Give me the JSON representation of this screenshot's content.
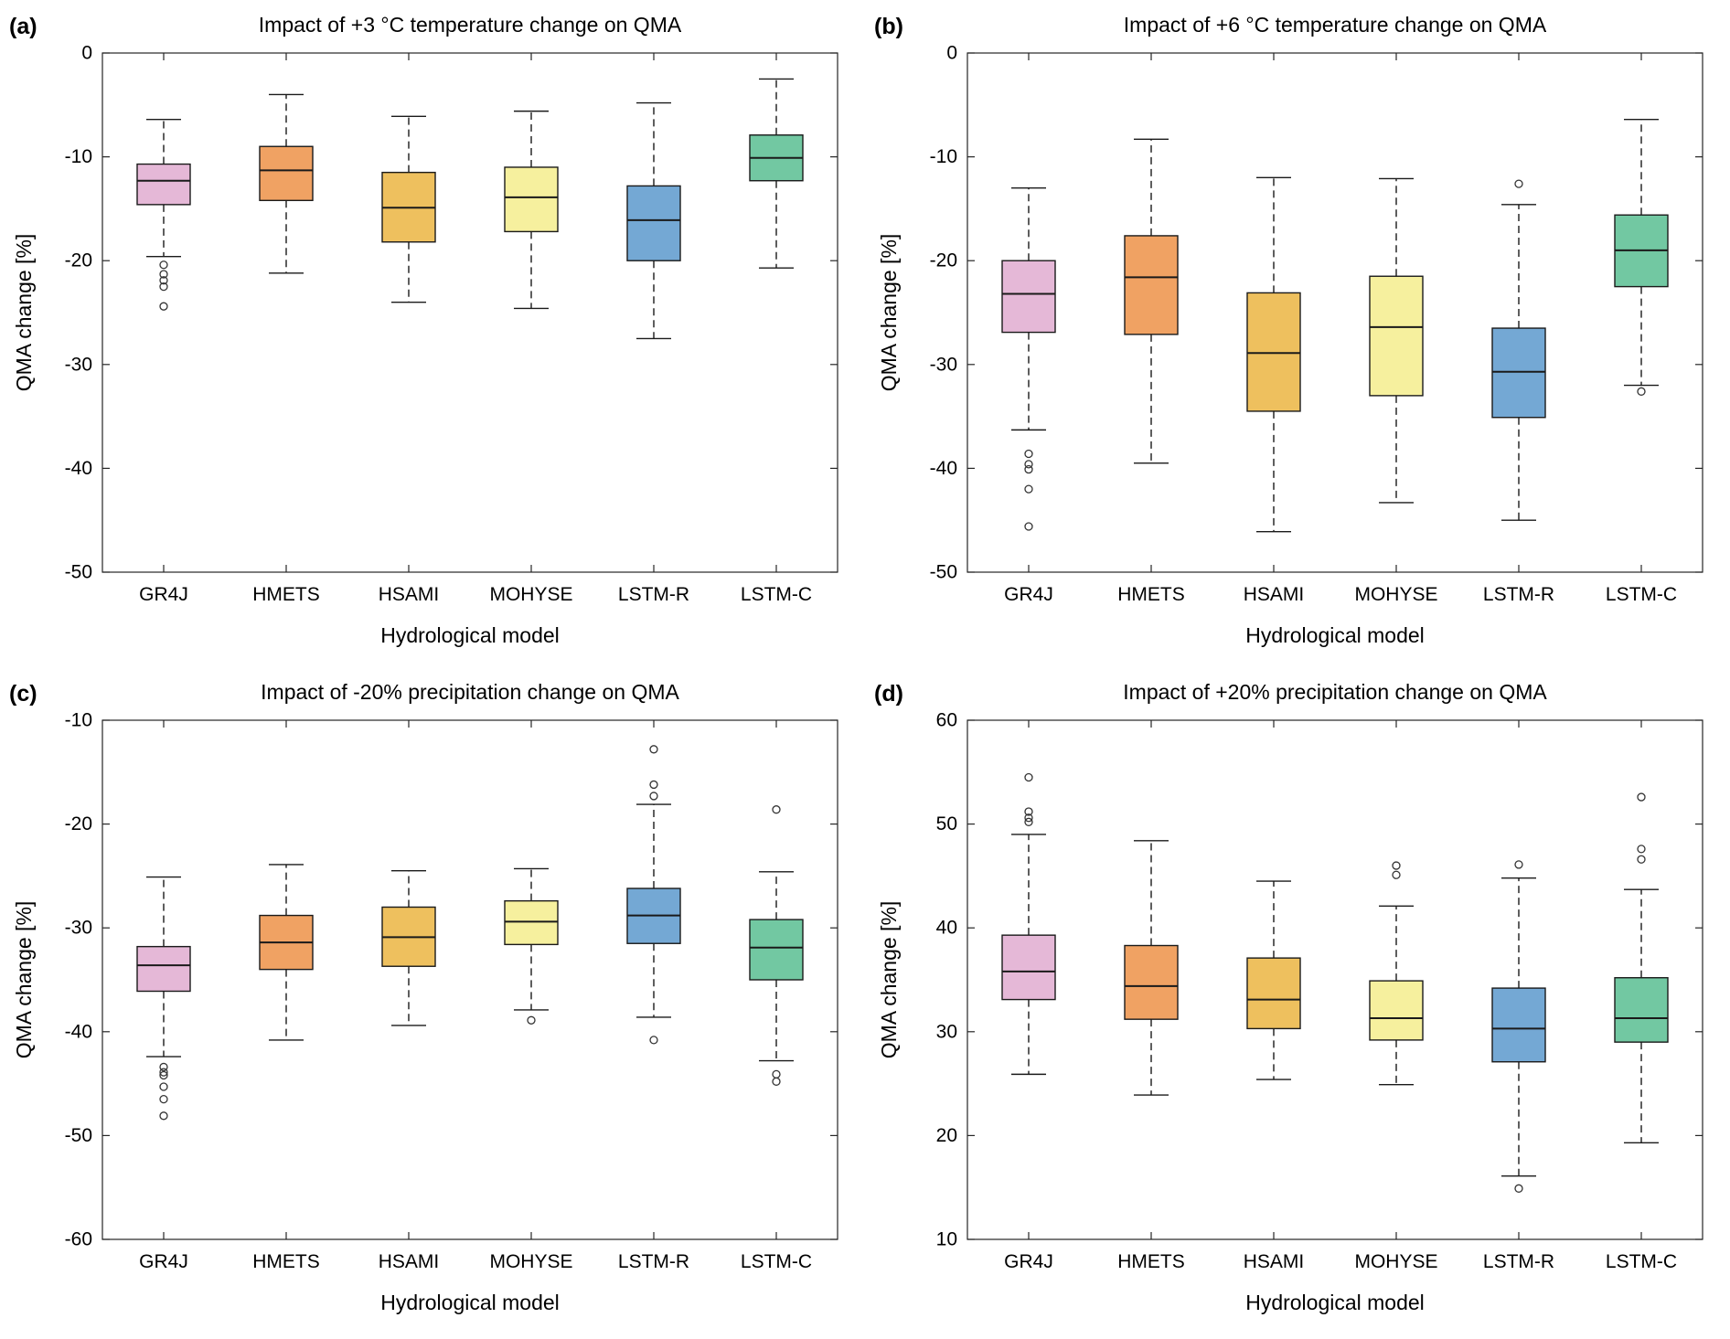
{
  "figure": {
    "background": "#ffffff",
    "categories": [
      "GR4J",
      "HMETS",
      "HSAMI",
      "MOHYSE",
      "LSTM-R",
      "LSTM-C"
    ],
    "colors": {
      "GR4J": "#E5B8D7",
      "HMETS": "#F0A263",
      "HSAMI": "#EEC05E",
      "MOHYSE": "#F6F09E",
      "LSTM-R": "#74A8D4",
      "LSTM-C": "#72C8A2"
    }
  },
  "chart_data": [
    {
      "type": "boxplot",
      "panel_label": "(a)",
      "title": "Impact of +3 °C temperature change on QMA",
      "xlabel": "Hydrological model",
      "ylabel": "QMA change [%]",
      "ylim": [
        -50,
        0
      ],
      "yticks": [
        0,
        -10,
        -20,
        -30,
        -40,
        -50
      ],
      "categories": [
        "GR4J",
        "HMETS",
        "HSAMI",
        "MOHYSE",
        "LSTM-R",
        "LSTM-C"
      ],
      "series": [
        {
          "name": "GR4J",
          "color": "#E5B8D7",
          "whislo": -19.6,
          "q1": -14.6,
          "med": -12.3,
          "q3": -10.7,
          "whishi": -6.4,
          "fliers": [
            -20.4,
            -21.3,
            -21.9,
            -22.5,
            -24.4
          ]
        },
        {
          "name": "HMETS",
          "color": "#F0A263",
          "whislo": -21.2,
          "q1": -14.2,
          "med": -11.3,
          "q3": -9.0,
          "whishi": -4.0,
          "fliers": []
        },
        {
          "name": "HSAMI",
          "color": "#EEC05E",
          "whislo": -24.0,
          "q1": -18.2,
          "med": -14.9,
          "q3": -11.5,
          "whishi": -6.1,
          "fliers": []
        },
        {
          "name": "MOHYSE",
          "color": "#F6F09E",
          "whislo": -24.6,
          "q1": -17.2,
          "med": -13.9,
          "q3": -11.0,
          "whishi": -5.6,
          "fliers": []
        },
        {
          "name": "LSTM-R",
          "color": "#74A8D4",
          "whislo": -27.5,
          "q1": -20.0,
          "med": -16.1,
          "q3": -12.8,
          "whishi": -4.8,
          "fliers": []
        },
        {
          "name": "LSTM-C",
          "color": "#72C8A2",
          "whislo": -20.7,
          "q1": -12.3,
          "med": -10.1,
          "q3": -7.9,
          "whishi": -2.5,
          "fliers": []
        }
      ]
    },
    {
      "type": "boxplot",
      "panel_label": "(b)",
      "title": "Impact of +6 °C temperature change on QMA",
      "xlabel": "Hydrological model",
      "ylabel": "QMA change [%]",
      "ylim": [
        -50,
        0
      ],
      "yticks": [
        0,
        -10,
        -20,
        -30,
        -40,
        -50
      ],
      "categories": [
        "GR4J",
        "HMETS",
        "HSAMI",
        "MOHYSE",
        "LSTM-R",
        "LSTM-C"
      ],
      "series": [
        {
          "name": "GR4J",
          "color": "#E5B8D7",
          "whislo": -36.3,
          "q1": -26.9,
          "med": -23.2,
          "q3": -20.0,
          "whishi": -13.0,
          "fliers": [
            -38.6,
            -39.6,
            -40.1,
            -42.0,
            -45.6
          ]
        },
        {
          "name": "HMETS",
          "color": "#F0A263",
          "whislo": -39.5,
          "q1": -27.1,
          "med": -21.6,
          "q3": -17.6,
          "whishi": -8.3,
          "fliers": []
        },
        {
          "name": "HSAMI",
          "color": "#EEC05E",
          "whislo": -46.1,
          "q1": -34.5,
          "med": -28.9,
          "q3": -23.1,
          "whishi": -12.0,
          "fliers": []
        },
        {
          "name": "MOHYSE",
          "color": "#F6F09E",
          "whislo": -43.3,
          "q1": -33.0,
          "med": -26.4,
          "q3": -21.5,
          "whishi": -12.1,
          "fliers": []
        },
        {
          "name": "LSTM-R",
          "color": "#74A8D4",
          "whislo": -45.0,
          "q1": -35.1,
          "med": -30.7,
          "q3": -26.5,
          "whishi": -14.6,
          "fliers": [
            -12.6
          ]
        },
        {
          "name": "LSTM-C",
          "color": "#72C8A2",
          "whislo": -32.0,
          "q1": -22.5,
          "med": -19.0,
          "q3": -15.6,
          "whishi": -6.4,
          "fliers": [
            -32.6
          ]
        }
      ]
    },
    {
      "type": "boxplot",
      "panel_label": "(c)",
      "title": "Impact of -20% precipitation change on QMA",
      "xlabel": "Hydrological model",
      "ylabel": "QMA change [%]",
      "ylim": [
        -60,
        -10
      ],
      "yticks": [
        -10,
        -20,
        -30,
        -40,
        -50,
        -60
      ],
      "categories": [
        "GR4J",
        "HMETS",
        "HSAMI",
        "MOHYSE",
        "LSTM-R",
        "LSTM-C"
      ],
      "series": [
        {
          "name": "GR4J",
          "color": "#E5B8D7",
          "whislo": -42.4,
          "q1": -36.1,
          "med": -33.6,
          "q3": -31.8,
          "whishi": -25.1,
          "fliers": [
            -43.4,
            -43.9,
            -44.2,
            -45.3,
            -46.5,
            -48.1
          ]
        },
        {
          "name": "HMETS",
          "color": "#F0A263",
          "whislo": -40.8,
          "q1": -34.0,
          "med": -31.4,
          "q3": -28.8,
          "whishi": -23.9,
          "fliers": []
        },
        {
          "name": "HSAMI",
          "color": "#EEC05E",
          "whislo": -39.4,
          "q1": -33.7,
          "med": -30.9,
          "q3": -28.0,
          "whishi": -24.5,
          "fliers": []
        },
        {
          "name": "MOHYSE",
          "color": "#F6F09E",
          "whislo": -37.9,
          "q1": -31.6,
          "med": -29.4,
          "q3": -27.4,
          "whishi": -24.3,
          "fliers": [
            -38.9
          ]
        },
        {
          "name": "LSTM-R",
          "color": "#74A8D4",
          "whislo": -38.6,
          "q1": -31.5,
          "med": -28.8,
          "q3": -26.2,
          "whishi": -18.1,
          "fliers": [
            -12.8,
            -16.2,
            -17.3,
            -40.8
          ]
        },
        {
          "name": "LSTM-C",
          "color": "#72C8A2",
          "whislo": -42.8,
          "q1": -35.0,
          "med": -31.9,
          "q3": -29.2,
          "whishi": -24.6,
          "fliers": [
            -18.6,
            -44.1,
            -44.8
          ]
        }
      ]
    },
    {
      "type": "boxplot",
      "panel_label": "(d)",
      "title": "Impact of +20% precipitation change on QMA",
      "xlabel": "Hydrological model",
      "ylabel": "QMA change [%]",
      "ylim": [
        10,
        60
      ],
      "yticks": [
        60,
        50,
        40,
        30,
        20,
        10
      ],
      "categories": [
        "GR4J",
        "HMETS",
        "HSAMI",
        "MOHYSE",
        "LSTM-R",
        "LSTM-C"
      ],
      "series": [
        {
          "name": "GR4J",
          "color": "#E5B8D7",
          "whislo": 25.9,
          "q1": 33.1,
          "med": 35.8,
          "q3": 39.3,
          "whishi": 49.0,
          "fliers": [
            50.2,
            50.6,
            51.2,
            54.5
          ]
        },
        {
          "name": "HMETS",
          "color": "#F0A263",
          "whislo": 23.9,
          "q1": 31.2,
          "med": 34.4,
          "q3": 38.3,
          "whishi": 48.4,
          "fliers": []
        },
        {
          "name": "HSAMI",
          "color": "#EEC05E",
          "whislo": 25.4,
          "q1": 30.3,
          "med": 33.1,
          "q3": 37.1,
          "whishi": 44.5,
          "fliers": []
        },
        {
          "name": "MOHYSE",
          "color": "#F6F09E",
          "whislo": 24.9,
          "q1": 29.2,
          "med": 31.3,
          "q3": 34.9,
          "whishi": 42.1,
          "fliers": [
            45.1,
            46.0
          ]
        },
        {
          "name": "LSTM-R",
          "color": "#74A8D4",
          "whislo": 16.1,
          "q1": 27.1,
          "med": 30.3,
          "q3": 34.2,
          "whishi": 44.8,
          "fliers": [
            14.9,
            46.1
          ]
        },
        {
          "name": "LSTM-C",
          "color": "#72C8A2",
          "whislo": 19.3,
          "q1": 29.0,
          "med": 31.3,
          "q3": 35.2,
          "whishi": 43.7,
          "fliers": [
            46.6,
            47.6,
            52.6
          ]
        }
      ]
    }
  ]
}
